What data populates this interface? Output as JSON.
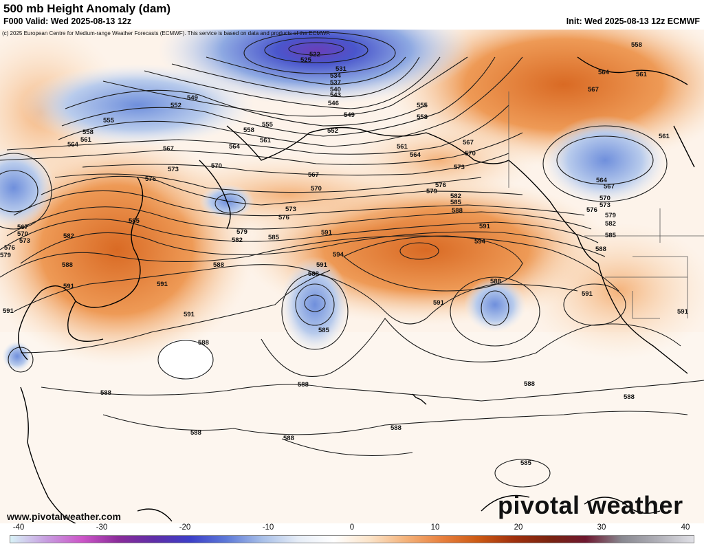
{
  "header": {
    "title": "500 mb Height Anomaly (dam)",
    "valid": "F000 Valid: Wed 2025-08-13 12z",
    "init": "Init: Wed 2025-08-13 12z ECMWF",
    "copyright": "(c) 2025 European Centre for Medium-range Weather Forecasts (ECMWF). This service is based on data and products of the ECMWF."
  },
  "footer": {
    "website": "www.pivotalweather.com",
    "logo_text": "pivotal weather"
  },
  "colorbar": {
    "ticks": [
      "-40",
      "-30",
      "-20",
      "-10",
      "0",
      "10",
      "20",
      "30",
      "40"
    ],
    "stops": [
      "#d8f2f7",
      "#c79de0",
      "#cc55c8",
      "#8a2c9a",
      "#5f2ea8",
      "#3c3fc8",
      "#5c78d8",
      "#a7bfe8",
      "#e6edf7",
      "#ffffff",
      "#fbe3c8",
      "#f4b27a",
      "#e8803e",
      "#cc5a14",
      "#a0300e",
      "#7a2410",
      "#6e1830",
      "#888890",
      "#b0b0b8",
      "#e0e0e6"
    ]
  },
  "contour_labels": [
    "522",
    "525",
    "531",
    "534",
    "537",
    "540",
    "543",
    "546",
    "549",
    "552",
    "555",
    "558",
    "561",
    "564",
    "567",
    "570",
    "573",
    "576",
    "579",
    "582",
    "585",
    "588",
    "591",
    "594"
  ],
  "colors": {
    "positive_anomaly": "#e8803e",
    "negative_anomaly": "#5c78d8",
    "contour": "#1a1a1a"
  }
}
